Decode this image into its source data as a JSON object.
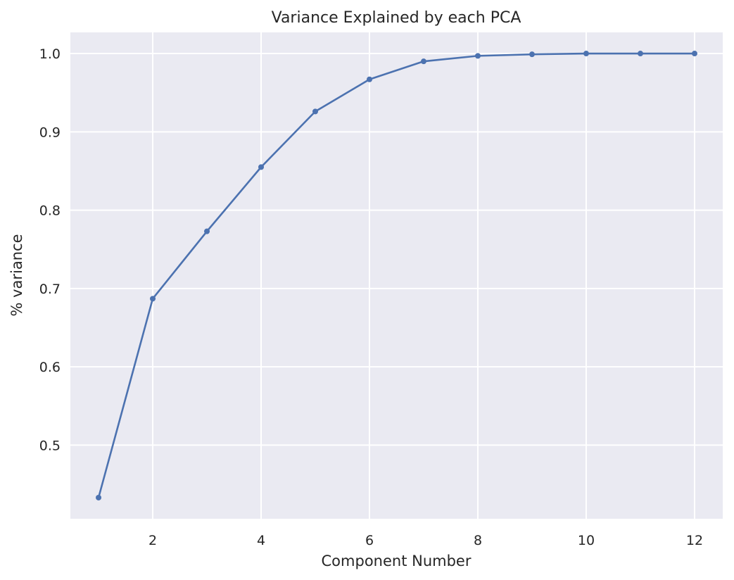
{
  "chart_data": {
    "type": "line",
    "title": "Variance Explained by each PCA",
    "xlabel": "Component Number",
    "ylabel": "% variance",
    "x": [
      1,
      2,
      3,
      4,
      5,
      6,
      7,
      8,
      9,
      10,
      11,
      12
    ],
    "series": [
      {
        "values": [
          0.433,
          0.687,
          0.773,
          0.855,
          0.926,
          0.967,
          0.99,
          0.997,
          0.999,
          1.0,
          1.0,
          1.0
        ]
      }
    ],
    "xlim": [
      0.48,
      12.52
    ],
    "ylim": [
      0.406,
      1.027
    ],
    "xticks": [
      2,
      4,
      6,
      8,
      10,
      12
    ],
    "xtick_labels": [
      "2",
      "4",
      "6",
      "8",
      "10",
      "12"
    ],
    "yticks": [
      0.5,
      0.6,
      0.7,
      0.8,
      0.9,
      1.0
    ],
    "ytick_labels": [
      "0.5",
      "0.6",
      "0.7",
      "0.8",
      "0.9",
      "1.0"
    ],
    "grid": true,
    "colors": {
      "background": "#ffffff",
      "plot_background": "#eaeaf2",
      "grid": "#ffffff",
      "line": "#4c72b0",
      "text": "#262626"
    }
  }
}
